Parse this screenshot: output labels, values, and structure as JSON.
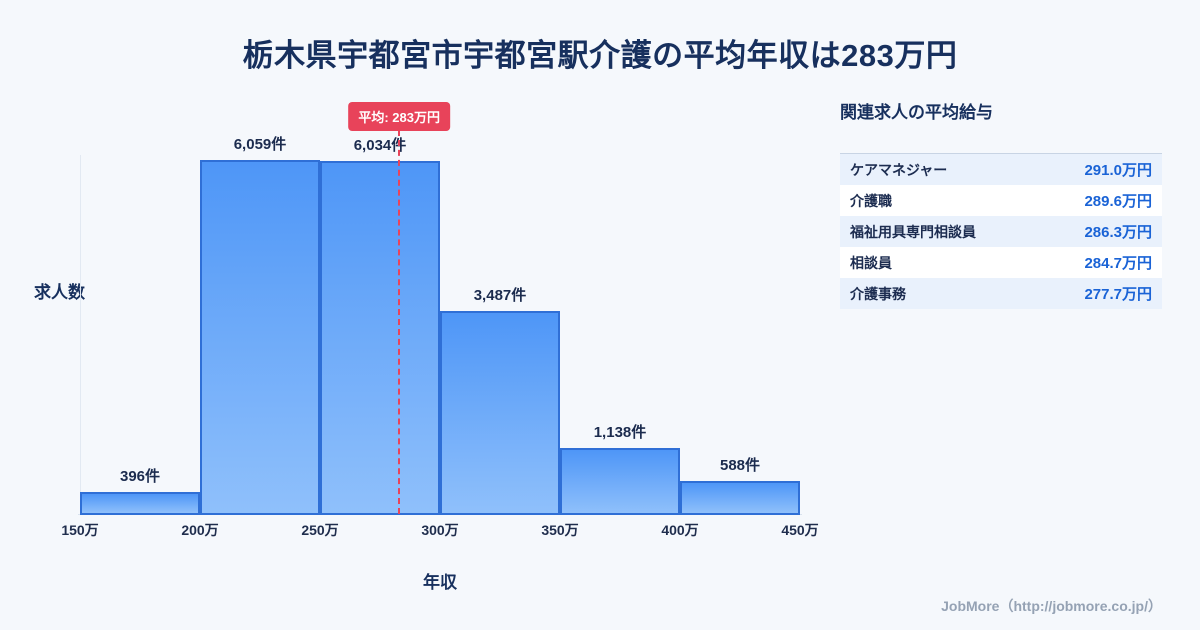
{
  "title": "栃木県宇都宮市宇都宮駅介護の平均年収は283万円",
  "chart_data": {
    "type": "bar",
    "title": "栃木県宇都宮市宇都宮駅介護の平均年収は283万円",
    "categories": [
      "150万-200万",
      "200万-250万",
      "250万-300万",
      "300万-350万",
      "350万-400万",
      "400万-450万"
    ],
    "values": [
      396,
      6059,
      6034,
      3487,
      1138,
      588
    ],
    "bar_labels": [
      "396件",
      "6,059件",
      "6,034件",
      "3,487件",
      "1,138件",
      "588件"
    ],
    "x_ticks": [
      "150万",
      "200万",
      "250万",
      "300万",
      "350万",
      "400万",
      "450万"
    ],
    "xlabel": "年収",
    "ylabel": "求人数",
    "x_range": [
      150,
      450
    ],
    "ylim": [
      0,
      6400
    ],
    "grid": "off",
    "legend": "none",
    "average_value": 283,
    "average_label": "平均: 283万円",
    "bar_color_top": "#4e96f7",
    "bar_color_bottom": "#8fc0fb",
    "bar_border_color": "#2f6fd6",
    "average_line_color": "#e8435a",
    "title_color": "#17305e",
    "background_color": "#f5f8fc"
  },
  "side_panel": {
    "heading": "関連求人の平均給与",
    "rows": [
      {
        "label": "ケアマネジャー",
        "value": "291.0万円"
      },
      {
        "label": "介護職",
        "value": "289.6万円"
      },
      {
        "label": "福祉用具専門相談員",
        "value": "286.3万円"
      },
      {
        "label": "相談員",
        "value": "284.7万円"
      },
      {
        "label": "介護事務",
        "value": "277.7万円"
      }
    ],
    "value_color": "#1a63d6"
  },
  "footer": {
    "credit": "JobMore（http://jobmore.co.jp/）"
  }
}
